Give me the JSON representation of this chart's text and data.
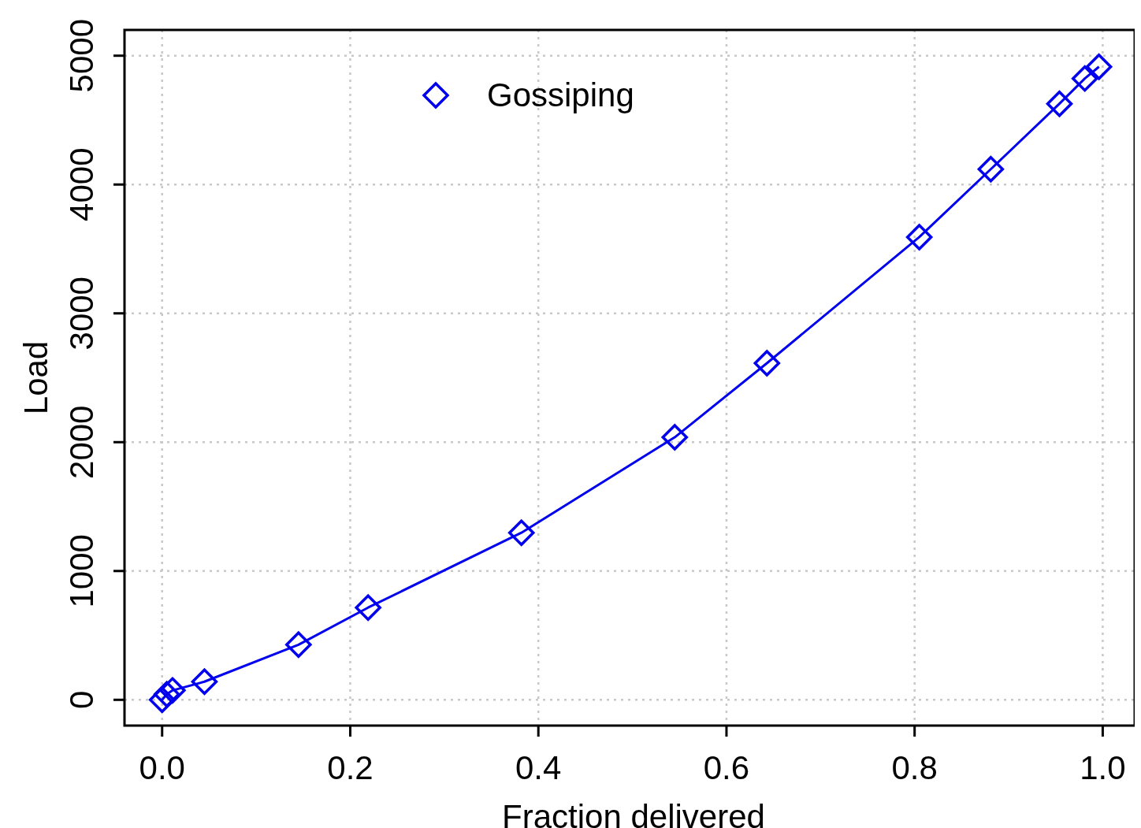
{
  "chart_data": {
    "type": "line",
    "xlabel": "Fraction delivered",
    "ylabel": "Load",
    "x": [
      0,
      0.005,
      0.011,
      0.045,
      0.145,
      0.219,
      0.382,
      0.545,
      0.643,
      0.805,
      0.881,
      0.954,
      0.981,
      0.996
    ],
    "series": [
      {
        "name": "Gossiping",
        "color": "#0000ee",
        "values": [
          0,
          43,
          73,
          141,
          428,
          716,
          1297,
          2038,
          2613,
          3592,
          4119,
          4627,
          4823,
          4914
        ]
      }
    ],
    "xlim": [
      -0.04,
      1.034
    ],
    "ylim": [
      -200,
      5200
    ],
    "xticks": [
      {
        "value": 0,
        "label": "0.0"
      },
      0.2,
      0.4,
      0.6,
      0.8,
      {
        "value": 1,
        "label": "1.0"
      }
    ],
    "yticks": [
      0,
      1000,
      2000,
      3000,
      4000,
      5000
    ],
    "grid": true,
    "legend": "top",
    "marker": "diamond",
    "line_style": "solid"
  }
}
